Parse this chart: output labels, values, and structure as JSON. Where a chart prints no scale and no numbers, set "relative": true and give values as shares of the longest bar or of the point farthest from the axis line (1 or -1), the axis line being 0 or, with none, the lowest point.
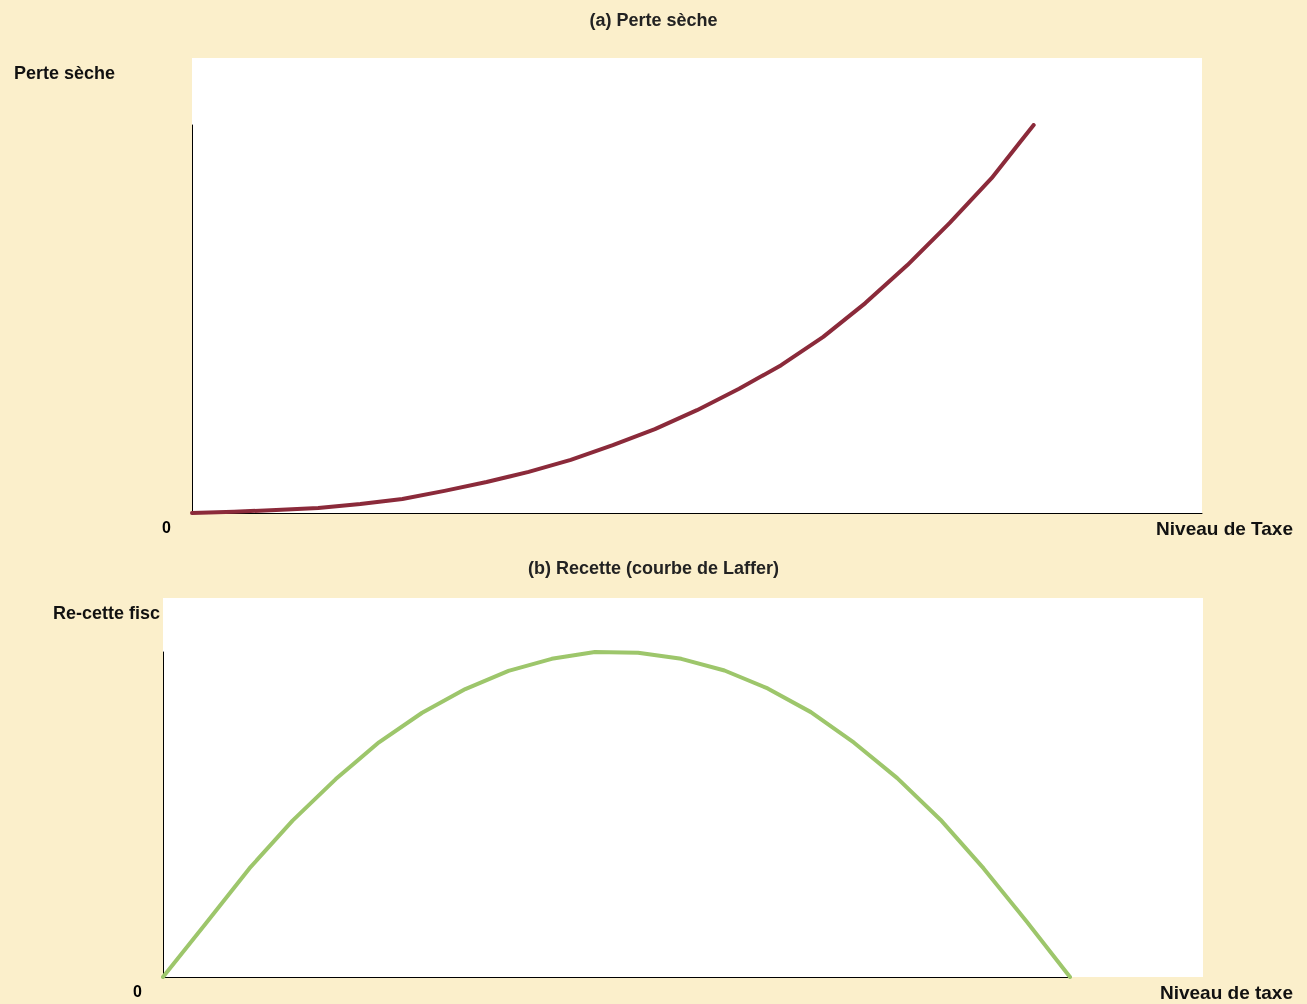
{
  "chart_data": [
    {
      "type": "line",
      "title": "(a) Perte sèche",
      "xlabel": "Niveau de Taxe",
      "ylabel": "Perte sèche",
      "relative": true,
      "marker": "none",
      "grid": false,
      "annotations": [
        "0"
      ],
      "categories": [
        null,
        null,
        null,
        null,
        null,
        null,
        null,
        null,
        null,
        null,
        null,
        null,
        null,
        null,
        null,
        null,
        null,
        null,
        null,
        null,
        null,
        null,
        null,
        null,
        null
      ],
      "series": [
        {
          "color": "#8b2a3a",
          "values": [
            0,
            0.003,
            0.008,
            0.013,
            0.023,
            0.036,
            0.057,
            0.08,
            0.106,
            0.137,
            0.175,
            0.216,
            0.265,
            0.32,
            0.381,
            0.454,
            0.541,
            0.639,
            0.747,
            0.863,
            1,
            null,
            null,
            null,
            null
          ]
        }
      ]
    },
    {
      "type": "line",
      "title": "(b) Recette (courbe de Laffer)",
      "xlabel": "Niveau de taxe",
      "ylabel": "Re-cette fisc",
      "relative": true,
      "marker": "none",
      "grid": false,
      "annotations": [
        "0"
      ],
      "categories": [
        null,
        null,
        null,
        null,
        null,
        null,
        null,
        null,
        null,
        null,
        null,
        null,
        null,
        null,
        null,
        null,
        null,
        null,
        null,
        null,
        null,
        null
      ],
      "series": [
        {
          "color": "#9dc66b",
          "values": [
            0,
            0.166,
            0.334,
            0.481,
            0.609,
            0.722,
            0.813,
            0.886,
            0.942,
            0.979,
            1,
            0.998,
            0.979,
            0.943,
            0.888,
            0.815,
            0.721,
            0.612,
            0.484,
            0.334,
            0.17,
            0
          ]
        }
      ]
    }
  ]
}
